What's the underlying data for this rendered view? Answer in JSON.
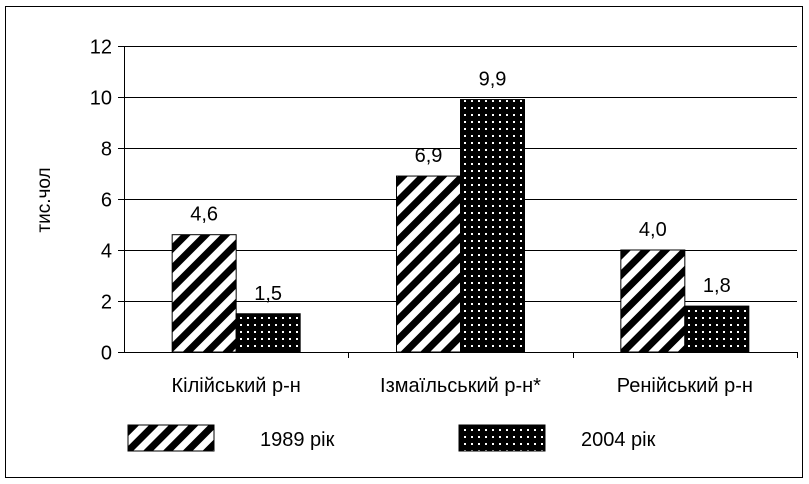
{
  "chart_data": {
    "type": "bar",
    "title": "",
    "xlabel": "",
    "ylabel": "тис.чол",
    "ylim": [
      0,
      12
    ],
    "yticks": [
      "0",
      "2",
      "4",
      "6",
      "8",
      "10",
      "12"
    ],
    "categories": [
      "Кілійський р-н",
      "Ізмаїльський р-н*",
      "Ренійський р-н"
    ],
    "series": [
      {
        "name": "1989 рік",
        "values": [
          4.6,
          6.9,
          4.0
        ],
        "labels": [
          "4,6",
          "6,9",
          "4,0"
        ],
        "pattern": "diagonal-stripes"
      },
      {
        "name": "2004 рік",
        "values": [
          1.5,
          9.9,
          1.8
        ],
        "labels": [
          "1,5",
          "9,9",
          "1,8"
        ],
        "pattern": "dotted-dark"
      }
    ],
    "grid": true,
    "legend_position": "bottom",
    "colors": {
      "bar_dark": "#000000",
      "bar_light": "#ffffff",
      "gridline": "#000000",
      "frame": "#000000"
    }
  }
}
